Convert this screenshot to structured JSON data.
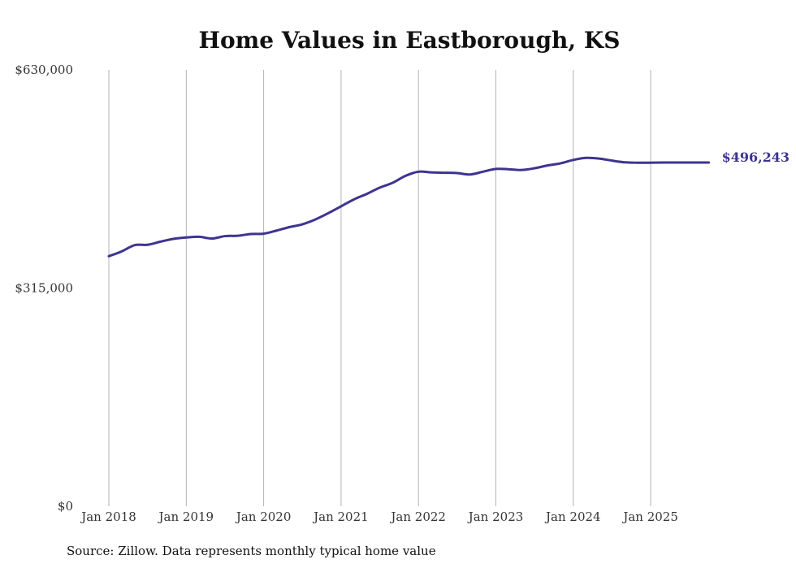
{
  "chart_data": {
    "type": "line",
    "title": "Home Values in Eastborough, KS",
    "xlabel": "",
    "ylabel": "",
    "ylim": [
      0,
      630000
    ],
    "y_ticks": [
      0,
      315000,
      630000
    ],
    "y_tick_labels": [
      "$0",
      "$315,000",
      "$630,000"
    ],
    "x_ticks": [
      2018,
      2019,
      2020,
      2021,
      2022,
      2023,
      2024,
      2025
    ],
    "x_tick_labels": [
      "Jan 2018",
      "Jan 2019",
      "Jan 2020",
      "Jan 2021",
      "Jan 2022",
      "Jan 2023",
      "Jan 2024",
      "Jan 2025"
    ],
    "grid": "vertical",
    "source": "Source: Zillow. Data represents monthly typical home value",
    "series": [
      {
        "name": "Eastborough, KS",
        "color": "#3d3490",
        "end_label": "$496,243",
        "x": [
          2018.0,
          2018.167,
          2018.333,
          2018.5,
          2018.667,
          2018.833,
          2019.0,
          2019.167,
          2019.333,
          2019.5,
          2019.667,
          2019.833,
          2020.0,
          2020.167,
          2020.333,
          2020.5,
          2020.667,
          2020.833,
          2021.0,
          2021.167,
          2021.333,
          2021.5,
          2021.667,
          2021.833,
          2022.0,
          2022.167,
          2022.333,
          2022.5,
          2022.667,
          2022.833,
          2023.0,
          2023.167,
          2023.333,
          2023.5,
          2023.667,
          2023.833,
          2024.0,
          2024.167,
          2024.333,
          2024.5,
          2024.667,
          2024.833,
          2025.0,
          2025.167,
          2025.333,
          2025.5,
          2025.667,
          2025.75
        ],
        "values": [
          361000,
          368000,
          377000,
          377500,
          382000,
          386000,
          388000,
          389000,
          386500,
          390000,
          390500,
          393000,
          393500,
          398000,
          403000,
          407000,
          414000,
          423000,
          433000,
          443000,
          451000,
          460000,
          467000,
          477000,
          483000,
          482000,
          481500,
          481000,
          479000,
          483000,
          487000,
          486500,
          485500,
          488000,
          492000,
          495000,
          500000,
          503000,
          502000,
          499000,
          496500,
          496000,
          496000,
          496200,
          496243,
          496243,
          496243,
          496243
        ]
      }
    ]
  }
}
